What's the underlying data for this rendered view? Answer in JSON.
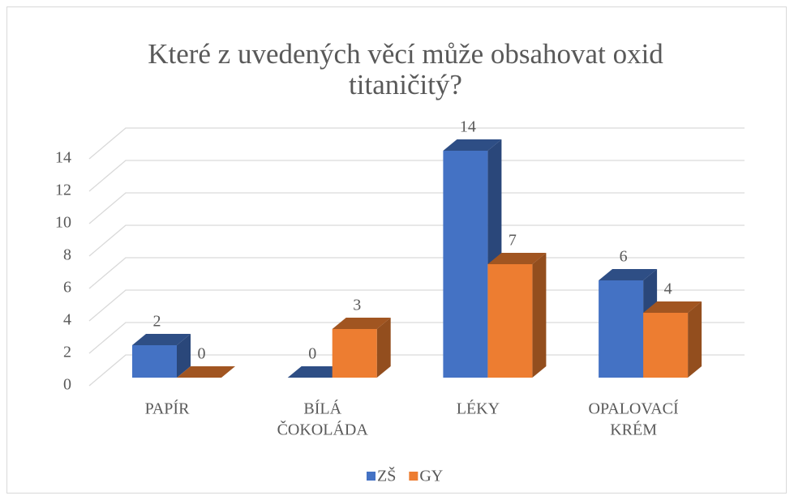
{
  "chart_data": {
    "type": "bar3d",
    "title": [
      "Které z uvedených věcí může obsahovat oxid",
      "titaničitý?"
    ],
    "categories": [
      [
        "PAPÍR"
      ],
      [
        "BÍLÁ",
        "ČOKOLÁDA"
      ],
      [
        "LÉKY"
      ],
      [
        "OPALOVACÍ",
        "KRÉM"
      ]
    ],
    "series": [
      {
        "name": "ZŠ",
        "color": "#4472c4",
        "values": [
          2,
          0,
          14,
          6
        ]
      },
      {
        "name": "GY",
        "color": "#ed7d31",
        "values": [
          0,
          3,
          7,
          4
        ]
      }
    ],
    "ylim": [
      0,
      14
    ],
    "yticks": [
      0,
      2,
      4,
      6,
      8,
      10,
      12,
      14
    ],
    "grid": true,
    "legend": "bottom"
  }
}
